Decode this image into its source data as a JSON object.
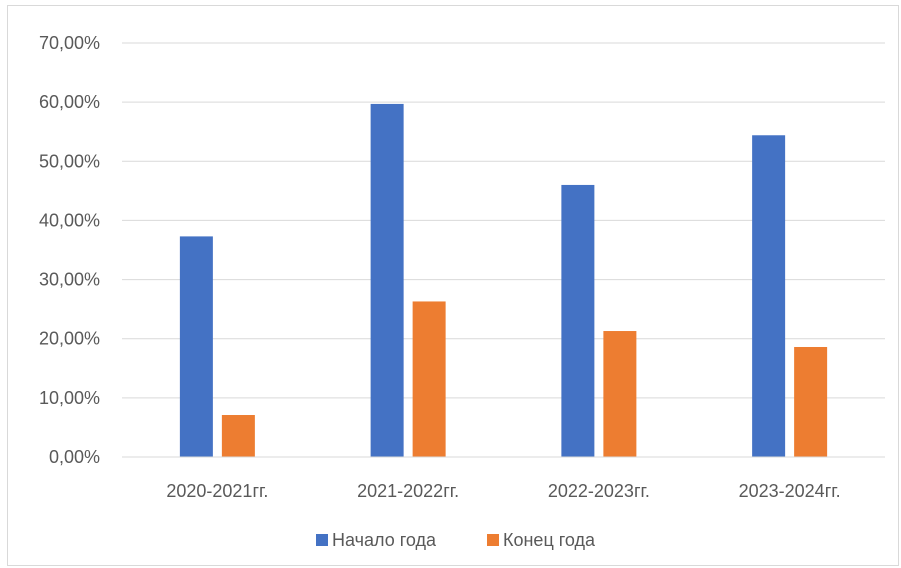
{
  "chart_data": {
    "type": "bar",
    "title": "",
    "xlabel": "",
    "ylabel": "",
    "categories": [
      "2020-2021гг.",
      "2021-2022гг.",
      "2022-2023гг.",
      "2023-2024гг."
    ],
    "series": [
      {
        "name": "Начало года",
        "color": "#4472C4",
        "values": [
          37.3,
          59.7,
          46.0,
          54.4
        ]
      },
      {
        "name": "Конец года",
        "color": "#ED7D31",
        "values": [
          7.1,
          26.3,
          21.3,
          18.6
        ]
      }
    ],
    "ylim": [
      0,
      70
    ],
    "yticks": [
      "0,00%",
      "10,00%",
      "20,00%",
      "30,00%",
      "40,00%",
      "50,00%",
      "60,00%",
      "70,00%"
    ],
    "grid": true,
    "legend_position": "bottom",
    "gridline_color": "#d9d9d9",
    "text_color": "#595959"
  }
}
